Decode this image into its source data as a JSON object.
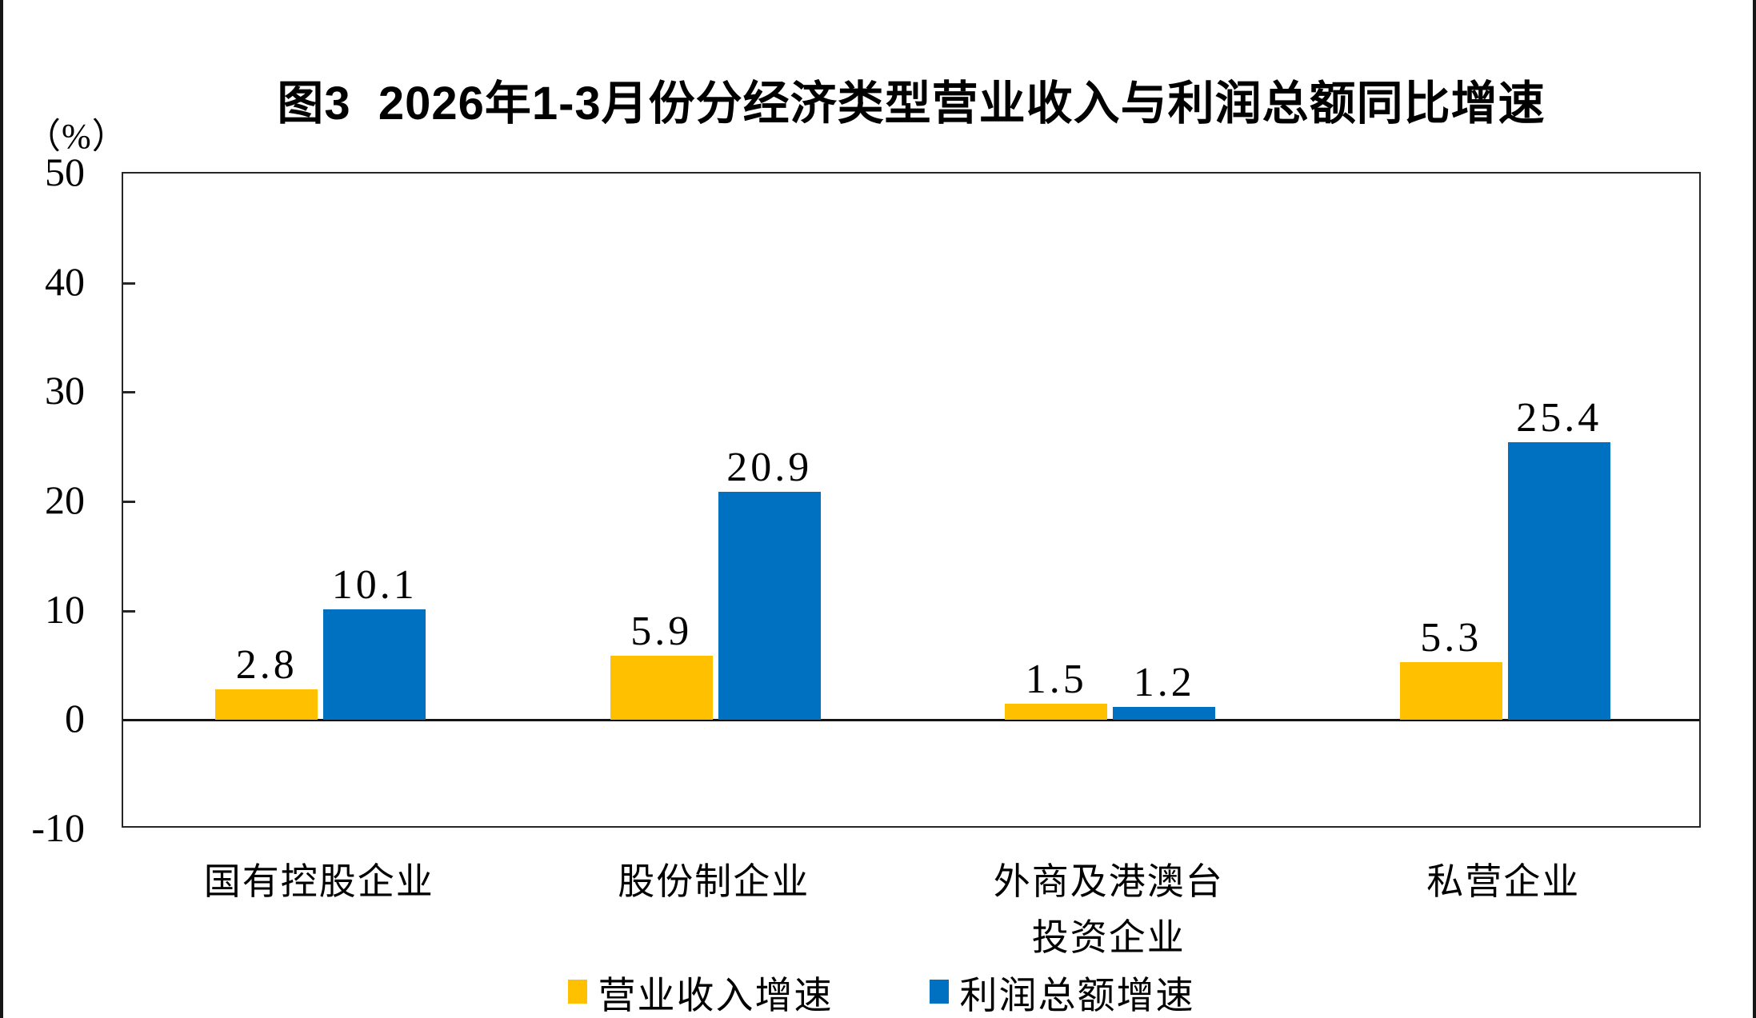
{
  "chart_data": {
    "type": "bar",
    "title": "图3  2026年1-3月份分经济类型营业收入与利润总额同比增速",
    "unit_label": "（%）",
    "categories": [
      "国有控股企业",
      "股份制企业",
      "外商及港澳台投资企业",
      "私营企业"
    ],
    "category_lines": [
      [
        "国有控股企业"
      ],
      [
        "股份制企业"
      ],
      [
        "外商及港澳台",
        "投资企业"
      ],
      [
        "私营企业"
      ]
    ],
    "series": [
      {
        "name": "营业收入增速",
        "color": "#FFC000",
        "values": [
          2.8,
          5.9,
          1.5,
          5.3
        ]
      },
      {
        "name": "利润总额增速",
        "color": "#0070C0",
        "values": [
          10.1,
          20.9,
          1.2,
          25.4
        ]
      }
    ],
    "value_labels": [
      "2.8",
      "10.1",
      "5.9",
      "20.9",
      "1.5",
      "1.2",
      "5.3",
      "25.4"
    ],
    "ylim": [
      -10,
      50
    ],
    "yticks": [
      50,
      40,
      30,
      20,
      10,
      0,
      -10
    ],
    "grid": false,
    "legend_position": "bottom",
    "axis_color": "#262626",
    "text_color": "#000000"
  }
}
